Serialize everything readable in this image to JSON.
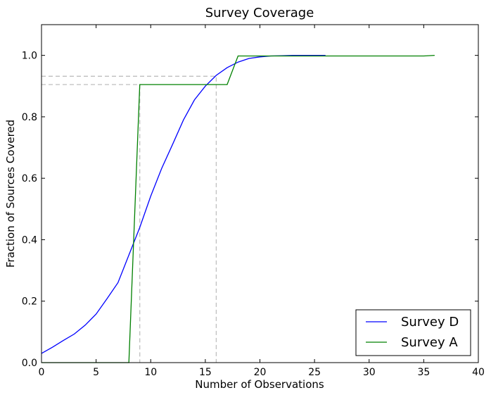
{
  "chart_data": {
    "type": "line",
    "title": "Survey Coverage",
    "xlabel": "Number of Observations",
    "ylabel": "Fraction of Sources Covered",
    "xlim": [
      0,
      40
    ],
    "ylim": [
      0,
      1.1
    ],
    "xticks": [
      0,
      5,
      10,
      15,
      20,
      25,
      30,
      35,
      40
    ],
    "yticks": [
      0.0,
      0.2,
      0.4,
      0.6,
      0.8,
      1.0
    ],
    "xtick_labels": [
      "0",
      "5",
      "10",
      "15",
      "20",
      "25",
      "30",
      "35",
      "40"
    ],
    "ytick_labels": [
      "0.0",
      "0.2",
      "0.4",
      "0.6",
      "0.8",
      "1.0"
    ],
    "grid": false,
    "legend_position": "bottom-right",
    "series": [
      {
        "name": "Survey D",
        "color": "#0000ff",
        "x": [
          0,
          1,
          2,
          3,
          4,
          5,
          6,
          7,
          8,
          9,
          10,
          11,
          12,
          13,
          14,
          15,
          16,
          17,
          18,
          19,
          20,
          21,
          22,
          23,
          24,
          25,
          26
        ],
        "y": [
          0.03,
          0.05,
          0.072,
          0.093,
          0.122,
          0.158,
          0.208,
          0.26,
          0.35,
          0.44,
          0.542,
          0.632,
          0.71,
          0.79,
          0.855,
          0.9,
          0.935,
          0.96,
          0.978,
          0.99,
          0.995,
          0.998,
          0.999,
          1.0,
          1.0,
          1.0,
          1.0
        ]
      },
      {
        "name": "Survey A",
        "color": "#008000",
        "x": [
          0,
          8,
          9,
          17,
          18,
          35,
          36
        ],
        "y": [
          0.0,
          0.0,
          0.905,
          0.905,
          0.998,
          0.998,
          1.0
        ]
      }
    ],
    "reference_lines": [
      {
        "color": "#bfbfbf",
        "points": [
          [
            0,
            0.905
          ],
          [
            9,
            0.905
          ],
          [
            9,
            0
          ]
        ]
      },
      {
        "color": "#bfbfbf",
        "points": [
          [
            0,
            0.932
          ],
          [
            16,
            0.932
          ],
          [
            16,
            0
          ]
        ]
      }
    ]
  }
}
